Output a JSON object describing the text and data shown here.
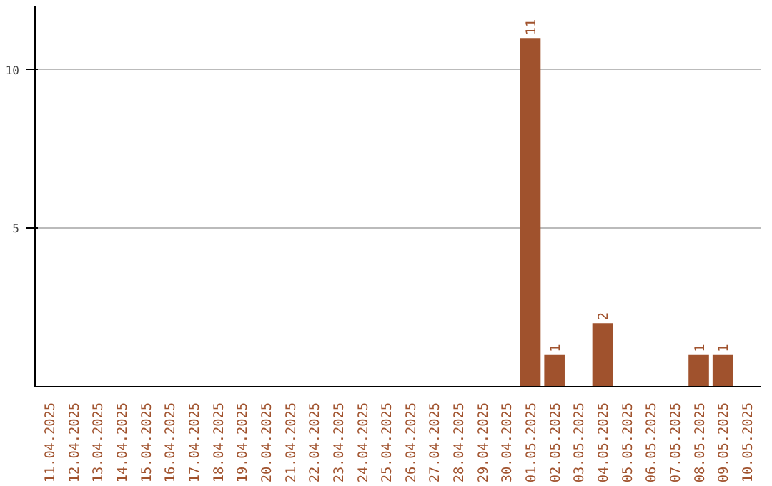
{
  "chart_data": {
    "type": "bar",
    "categories": [
      "11.04.2025",
      "12.04.2025",
      "13.04.2025",
      "14.04.2025",
      "15.04.2025",
      "16.04.2025",
      "17.04.2025",
      "18.04.2025",
      "19.04.2025",
      "20.04.2025",
      "21.04.2025",
      "22.04.2025",
      "23.04.2025",
      "24.04.2025",
      "25.04.2025",
      "26.04.2025",
      "27.04.2025",
      "28.04.2025",
      "29.04.2025",
      "30.04.2025",
      "01.05.2025",
      "02.05.2025",
      "03.05.2025",
      "04.05.2025",
      "05.05.2025",
      "06.05.2025",
      "07.05.2025",
      "08.05.2025",
      "09.05.2025",
      "10.05.2025"
    ],
    "values": [
      0,
      0,
      0,
      0,
      0,
      0,
      0,
      0,
      0,
      0,
      0,
      0,
      0,
      0,
      0,
      0,
      0,
      0,
      0,
      0,
      11,
      1,
      0,
      2,
      0,
      0,
      0,
      1,
      1,
      0
    ],
    "value_labels": [
      null,
      null,
      null,
      null,
      null,
      null,
      null,
      null,
      null,
      null,
      null,
      null,
      null,
      null,
      null,
      null,
      null,
      null,
      null,
      null,
      "11",
      "1",
      null,
      "2",
      null,
      null,
      null,
      "1",
      "1",
      null
    ],
    "color": "#a0522d",
    "ylim": [
      0,
      12
    ],
    "yticks": [
      5,
      10
    ],
    "grid": "y"
  }
}
